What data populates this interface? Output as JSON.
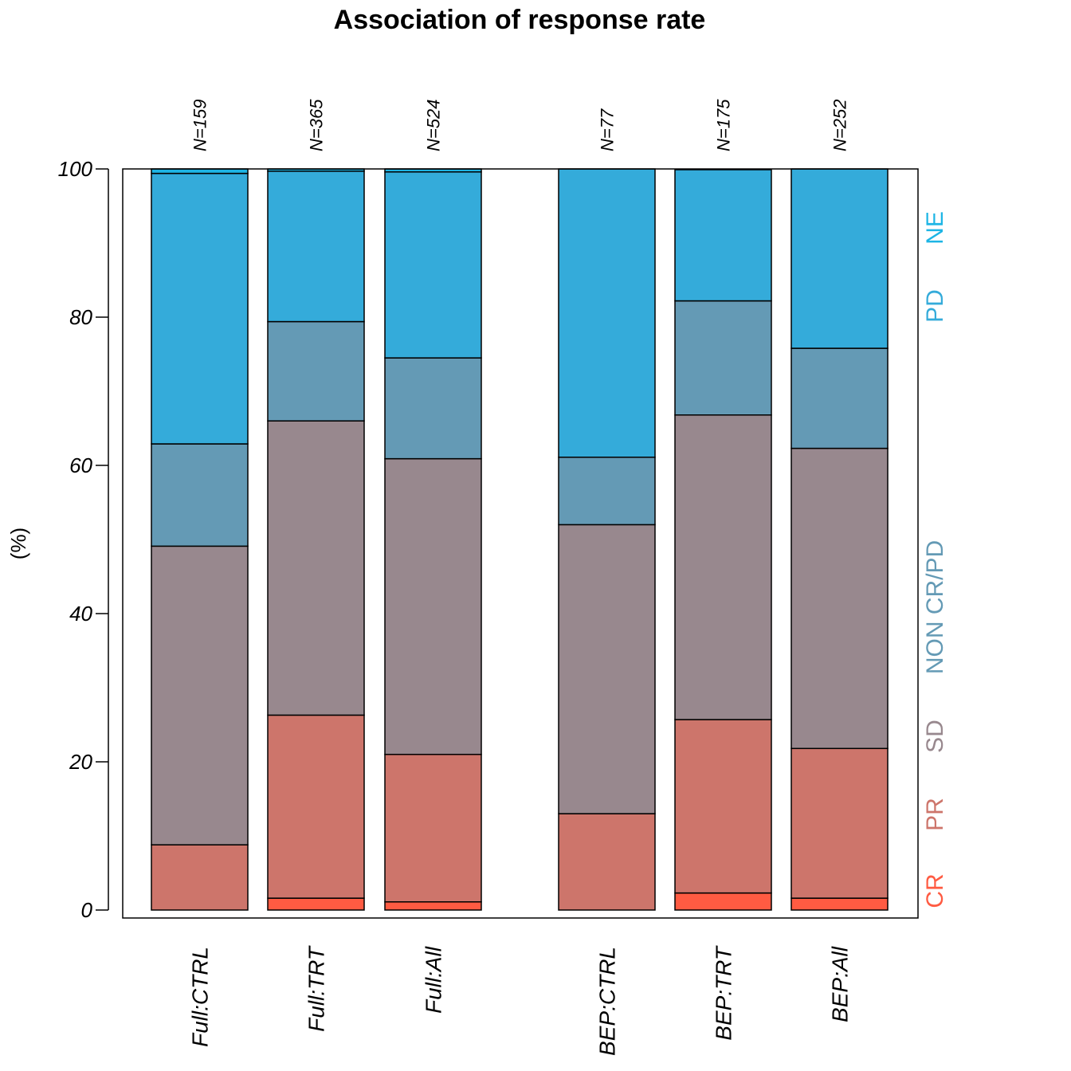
{
  "chart_data": {
    "type": "bar",
    "stacked": true,
    "title": "Association of response rate",
    "ylabel": "(%)",
    "xlabel": "",
    "ylim": [
      0,
      100
    ],
    "yticks": [
      "0",
      "20",
      "40",
      "60",
      "80",
      "100"
    ],
    "categories": [
      "Full:CTRL",
      "Full:TRT",
      "Full:All",
      "BEP:CTRL",
      "BEP:TRT",
      "BEP:All"
    ],
    "n_labels": [
      "N=159",
      "N=365",
      "N=524",
      "N=77",
      "N=175",
      "N=252"
    ],
    "grid": false,
    "legend_position": "right",
    "series": [
      {
        "name": "CR",
        "color": "#FF5B42",
        "values": [
          0.0,
          1.6,
          1.1,
          0.0,
          2.3,
          1.6
        ]
      },
      {
        "name": "PR",
        "color": "#CD756B",
        "values": [
          8.8,
          24.7,
          19.9,
          13.0,
          23.4,
          20.2
        ]
      },
      {
        "name": "SD",
        "color": "#98888E",
        "values": [
          40.3,
          39.7,
          39.9,
          39.0,
          41.1,
          40.5
        ]
      },
      {
        "name": "NON CR/PD",
        "color": "#649AB5",
        "values": [
          13.8,
          13.4,
          13.6,
          9.1,
          15.4,
          13.5
        ]
      },
      {
        "name": "PD",
        "color": "#34ABDA",
        "values": [
          36.5,
          20.3,
          25.1,
          38.9,
          17.7,
          24.2
        ]
      },
      {
        "name": "NE",
        "color": "#1DB5E5",
        "values": [
          0.6,
          0.3,
          0.4,
          0.0,
          0.0,
          0.0
        ]
      }
    ]
  }
}
